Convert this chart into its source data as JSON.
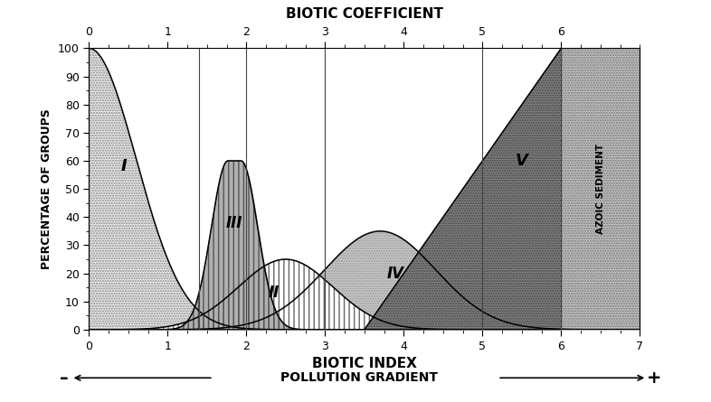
{
  "title_top": "BIOTIC COEFFICIENT",
  "xlabel": "BIOTIC INDEX",
  "ylabel": "PERCENTAGE OF GROUPS",
  "pollution_label": "POLLUTION GRADIENT",
  "azoic_label": "AZOIC SEDIMENT",
  "xlim": [
    0,
    7
  ],
  "ylim": [
    0,
    100
  ],
  "vertical_lines": [
    1.4,
    2.0,
    3.0,
    5.0,
    6.0
  ],
  "label_I": "I",
  "label_II": "II",
  "label_III": "III",
  "label_IV": "IV",
  "label_V": "V",
  "color_I": "#e8e8e8",
  "color_II": "#d0d0d0",
  "color_III": "#b0b0b0",
  "color_IV": "#c8c8c8",
  "color_V": "#808080",
  "color_azoic": "#c0c0c0",
  "hatch_I": "..",
  "hatch_II": "|||",
  "hatch_III": "|||",
  "hatch_IV": "..",
  "hatch_V": "..",
  "hatch_azoic": "..",
  "edge_I": "#888888",
  "edge_II": "#666666",
  "edge_III": "#555555",
  "edge_IV": "#999999",
  "edge_V": "#444444",
  "edge_azoic": "#777777"
}
